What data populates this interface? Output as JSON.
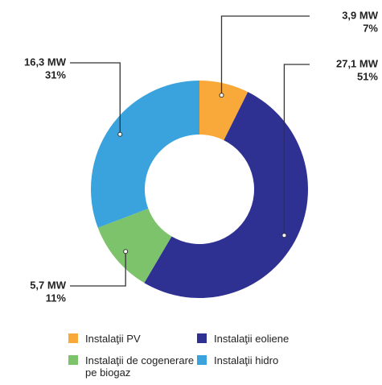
{
  "chart_data": {
    "type": "donut",
    "categories": [
      "Instalaţii PV",
      "Instalaţii eoliene",
      "Instalaţii de cogenerare pe biogaz",
      "Instalaţii hidro"
    ],
    "values": [
      3.9,
      27.1,
      5.7,
      16.3
    ],
    "value_labels": [
      "3,9 MW",
      "27,1 MW",
      "5,7 MW",
      "16,3 MW"
    ],
    "percents": [
      7,
      51,
      11,
      31
    ],
    "percent_labels": [
      "7%",
      "51%",
      "11%",
      "31%"
    ],
    "colors": [
      "#f9a93a",
      "#2e3192",
      "#7dc36b",
      "#3aa3dd"
    ]
  }
}
